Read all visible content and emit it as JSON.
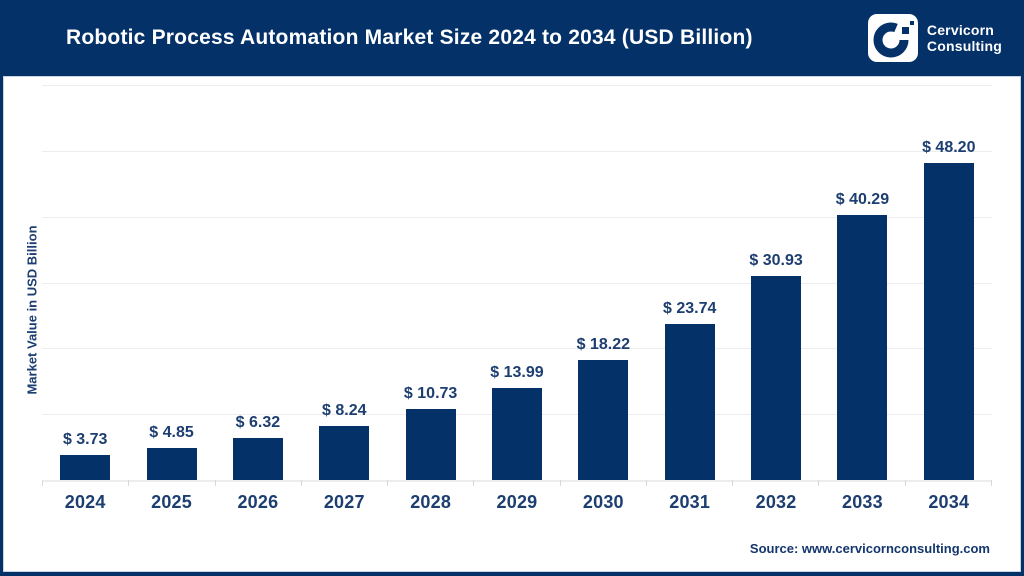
{
  "header": {
    "title": "Robotic Process Automation Market Size 2024 to 2034 (USD Billion)",
    "logo": {
      "icon": "cervicorn-c-logo",
      "line1": "Cervicorn",
      "line2": "Consulting"
    }
  },
  "footer": {
    "source": "Source: www.cervicornconsulting.com"
  },
  "colors": {
    "header_bg": "#053169",
    "bar": "#053169",
    "label_text": "#1d3e70",
    "gridline": "#ededed",
    "axis_line": "#d9d9d9",
    "background": "#ffffff"
  },
  "chart_data": {
    "type": "bar",
    "title": "Robotic Process Automation Market Size 2024 to 2034 (USD Billion)",
    "categories": [
      "2024",
      "2025",
      "2026",
      "2027",
      "2028",
      "2029",
      "2030",
      "2031",
      "2032",
      "2033",
      "2034"
    ],
    "values": [
      3.73,
      4.85,
      6.32,
      8.24,
      10.73,
      13.99,
      18.22,
      23.74,
      30.93,
      40.29,
      48.2
    ],
    "value_labels": [
      "$ 3.73",
      "$ 4.85",
      "$ 6.32",
      "$ 8.24",
      "$ 10.73",
      "$ 13.99",
      "$ 18.22",
      "$ 23.74",
      "$ 30.93",
      "$ 40.29",
      "$ 48.20"
    ],
    "xlabel": "",
    "ylabel": "Market Value in USD Billion",
    "ylim": [
      0,
      60
    ],
    "gridline_step": 10,
    "grid": "horizontal",
    "y_tick_labels": "none",
    "legend_position": "none",
    "bar_color": "#053169"
  }
}
